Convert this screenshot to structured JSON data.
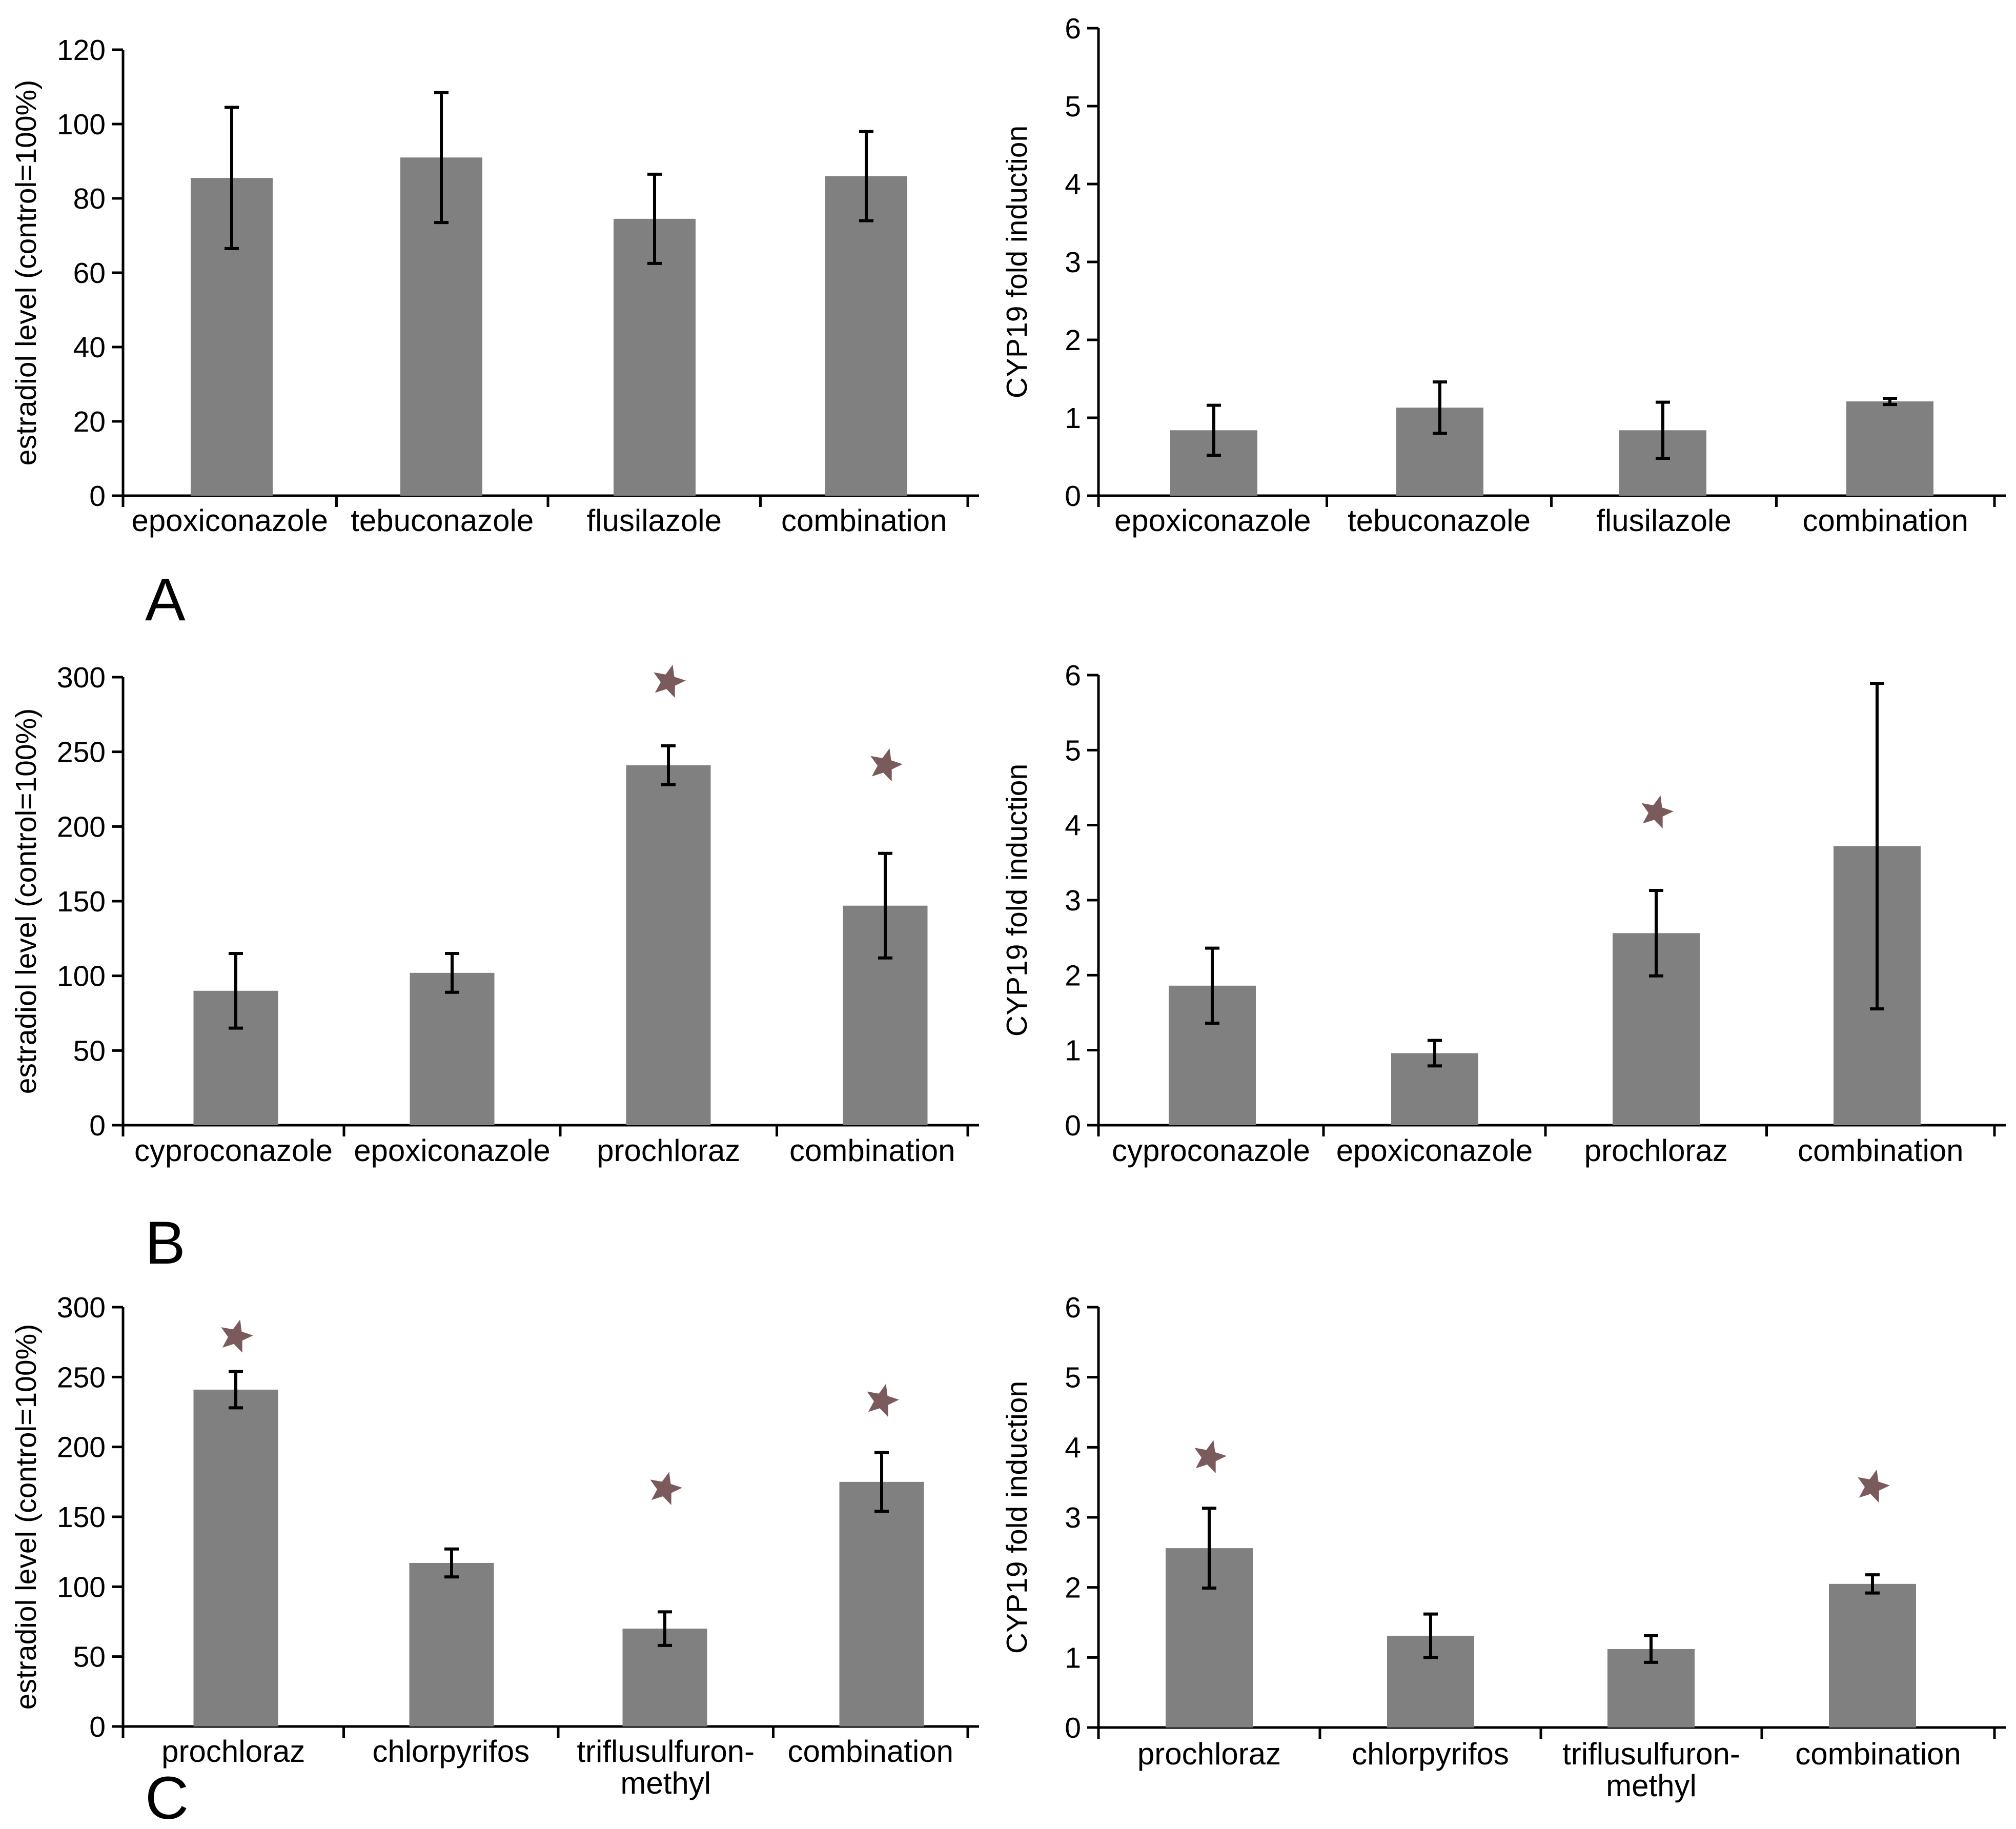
{
  "figure": {
    "panel_letters": [
      "A",
      "B",
      "C"
    ],
    "colors": {
      "bar": "#808080",
      "star": "#7a5a5a",
      "axis": "#000000"
    }
  },
  "chart_data": [
    {
      "id": "A-left",
      "type": "bar",
      "panel": "A",
      "title": "",
      "xlabel": "",
      "ylabel": "estradiol level (control=100%)",
      "ylim": [
        0,
        120
      ],
      "yticks": [
        0,
        20,
        40,
        60,
        80,
        100,
        120
      ],
      "categories": [
        "epoxiconazole",
        "tebuconazole",
        "flusilazole",
        "combination"
      ],
      "values": [
        85.5,
        91,
        74.5,
        86
      ],
      "errors": [
        19,
        17.5,
        12,
        12
      ],
      "significant": [
        false,
        false,
        false,
        false
      ]
    },
    {
      "id": "A-right",
      "type": "bar",
      "panel": "A",
      "title": "",
      "xlabel": "",
      "ylabel": "CYP19 fold induction",
      "ylim": [
        0,
        6
      ],
      "yticks": [
        0,
        1,
        2,
        3,
        4,
        5,
        6
      ],
      "categories": [
        "epoxiconazole",
        "tebuconazole",
        "flusilazole",
        "combination"
      ],
      "values": [
        0.84,
        1.13,
        0.84,
        1.21
      ],
      "errors": [
        0.32,
        0.33,
        0.36,
        0.04
      ],
      "significant": [
        false,
        false,
        false,
        false
      ]
    },
    {
      "id": "B-left",
      "type": "bar",
      "panel": "B",
      "title": "",
      "xlabel": "",
      "ylabel": "estradiol level (control=100%)",
      "ylim": [
        0,
        300
      ],
      "yticks": [
        0,
        50,
        100,
        150,
        200,
        250,
        300
      ],
      "categories": [
        "cyproconazole",
        "epoxiconazole",
        "prochloraz",
        "combination"
      ],
      "values": [
        90,
        102,
        241,
        147
      ],
      "errors": [
        25,
        13,
        13,
        35
      ],
      "significant": [
        false,
        false,
        true,
        true
      ],
      "star_values": [
        null,
        null,
        297,
        241
      ]
    },
    {
      "id": "B-right",
      "type": "bar",
      "panel": "B",
      "title": "",
      "xlabel": "",
      "ylabel": "CYP19 fold induction",
      "ylim": [
        0,
        6
      ],
      "yticks": [
        0,
        1,
        2,
        3,
        4,
        5,
        6
      ],
      "categories": [
        "cyproconazole",
        "epoxiconazole",
        "prochloraz",
        "combination"
      ],
      "values": [
        1.86,
        0.96,
        2.56,
        3.72
      ],
      "errors": [
        0.5,
        0.17,
        0.57,
        2.17
      ],
      "significant": [
        false,
        false,
        true,
        false
      ],
      "star_values": [
        null,
        null,
        4.17,
        null
      ]
    },
    {
      "id": "C-left",
      "type": "bar",
      "panel": "C",
      "title": "",
      "xlabel": "",
      "ylabel": "estradiol level (control=100%)",
      "ylim": [
        0,
        300
      ],
      "yticks": [
        0,
        50,
        100,
        150,
        200,
        250,
        300
      ],
      "categories": [
        "prochloraz",
        "chlorpyrifos",
        "triflusulfuron-methyl",
        "combination"
      ],
      "category_lines": [
        [
          "prochloraz"
        ],
        [
          "chlorpyrifos"
        ],
        [
          "triflusulfuron-",
          "methyl"
        ],
        [
          "combination"
        ]
      ],
      "values": [
        241,
        117,
        70,
        175
      ],
      "errors": [
        13,
        10,
        12,
        21
      ],
      "significant": [
        true,
        false,
        true,
        true
      ],
      "star_values": [
        279,
        null,
        170,
        233
      ]
    },
    {
      "id": "C-right",
      "type": "bar",
      "panel": "C",
      "title": "",
      "xlabel": "",
      "ylabel": "CYP19 fold induction",
      "ylim": [
        0,
        6
      ],
      "yticks": [
        0,
        1,
        2,
        3,
        4,
        5,
        6
      ],
      "categories": [
        "prochloraz",
        "chlorpyrifos",
        "triflusulfuron-methyl",
        "combination"
      ],
      "category_lines": [
        [
          "prochloraz"
        ],
        [
          "chlorpyrifos"
        ],
        [
          "triflusulfuron-",
          "methyl"
        ],
        [
          "combination"
        ]
      ],
      "values": [
        2.56,
        1.31,
        1.12,
        2.05
      ],
      "errors": [
        0.57,
        0.31,
        0.19,
        0.13
      ],
      "significant": [
        true,
        false,
        false,
        true
      ],
      "star_values": [
        3.86,
        null,
        null,
        3.44
      ]
    }
  ]
}
